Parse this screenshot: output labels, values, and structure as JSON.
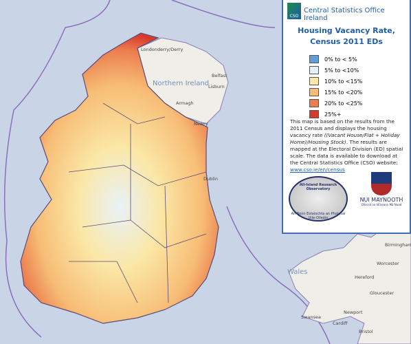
{
  "header": {
    "organisation": "Central Statistics Office Ireland",
    "icon_text": "CSO"
  },
  "title": {
    "line1": "Housing Vacancy Rate,",
    "line2": "Census 2011 EDs"
  },
  "legend": [
    {
      "label": "0% to < 5%",
      "color": "#5f9ed6"
    },
    {
      "label": "5% to <10%",
      "color": "#e4f1fa"
    },
    {
      "label": "10% to <15%",
      "color": "#fbe7a6"
    },
    {
      "label": "15% to <20%",
      "color": "#f7bd76"
    },
    {
      "label": "20% to <25%",
      "color": "#ec7f4f"
    },
    {
      "label": "25%+",
      "color": "#d63a2a"
    }
  ],
  "description": {
    "part1": "This map is based on the results from the 2011 Census and displays the housing vacancy rate",
    "italic": "((Vacant House/Flat + Holiday Home)/Housing Stock)",
    "part2": ". The results are mapped at the Electoral Division (ED) spatial scale. The data is available to download at the Central Statistics Office (CSO) website:",
    "link": "www.cso.ie/en/census"
  },
  "logos": {
    "airo_title": "All-Island Research Observatory",
    "airo_motto": "An Bonn Eolaíochta an Pholasaí Uile-Oileáin",
    "nui": "NUI MAYNOOTH",
    "nui_sub": "Ollscoil na hÉireann Má Nuad"
  },
  "places": [
    {
      "name": "Londonderry/Derry",
      "kind": "town"
    },
    {
      "name": "Northern Ireland",
      "kind": "region"
    },
    {
      "name": "Belfast",
      "kind": "town"
    },
    {
      "name": "Lisburn",
      "kind": "town"
    },
    {
      "name": "Armagh",
      "kind": "town"
    },
    {
      "name": "Newry",
      "kind": "town"
    },
    {
      "name": "Dublin",
      "kind": "town"
    },
    {
      "name": "Wales",
      "kind": "region"
    },
    {
      "name": "Birmingham",
      "kind": "town"
    },
    {
      "name": "Worcester",
      "kind": "town"
    },
    {
      "name": "Hereford",
      "kind": "town"
    },
    {
      "name": "Gloucester",
      "kind": "town"
    },
    {
      "name": "Swansea",
      "kind": "town"
    },
    {
      "name": "Newport",
      "kind": "town"
    },
    {
      "name": "Cardiff",
      "kind": "town"
    },
    {
      "name": "Bristol",
      "kind": "town"
    }
  ]
}
